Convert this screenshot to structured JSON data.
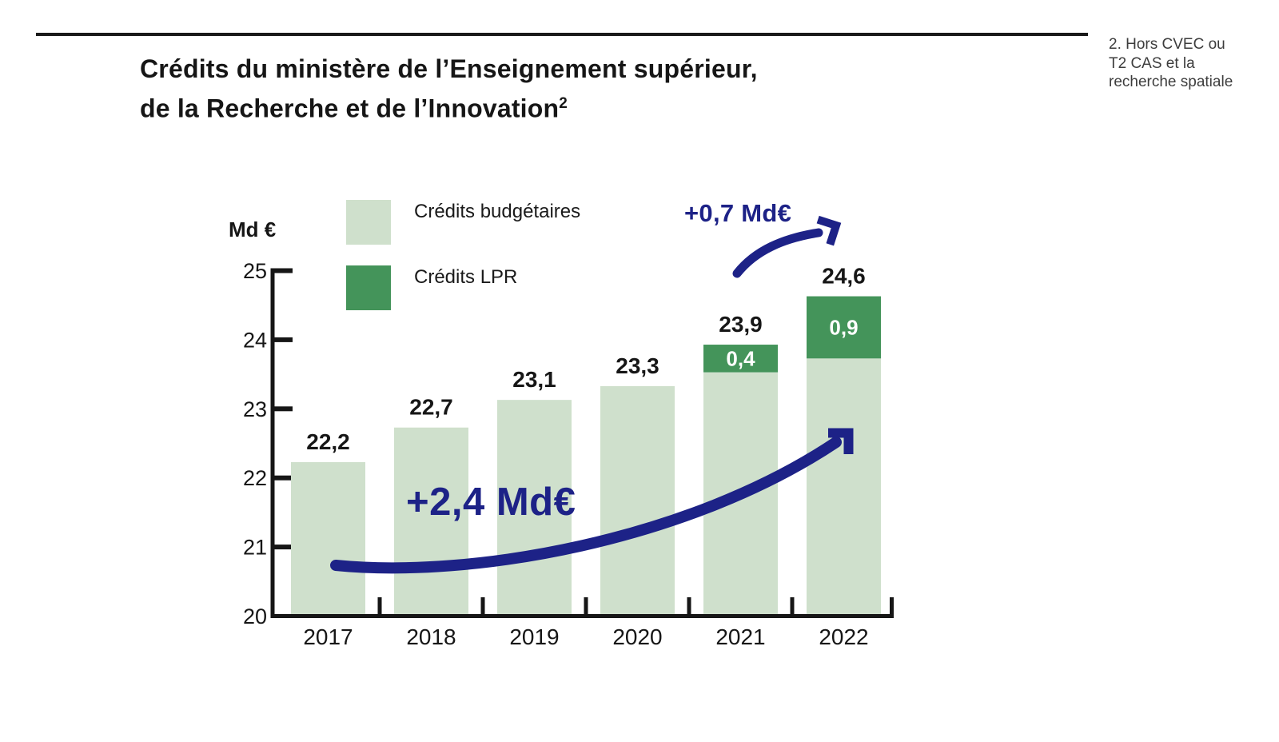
{
  "header": {
    "title_line1": "Crédits du ministère de l’Enseignement supérieur,",
    "title_line2": "de la Recherche et de l’Innovation",
    "title_superscript": "2"
  },
  "footnote": {
    "lines": [
      "2. Hors CVEC ou",
      "T2 CAS et la",
      "recherche spatiale"
    ]
  },
  "legend": {
    "items": [
      {
        "label": "Crédits budgétaires",
        "color": "#cfe0cc"
      },
      {
        "label": "Crédits LPR",
        "color": "#44945a"
      }
    ]
  },
  "annotations": {
    "cumulative_increase_label": "+2,4 Md€",
    "last_year_increase_label": "+0,7 Md€",
    "arrow_color": "#1d2287"
  },
  "chart_data": {
    "type": "bar",
    "stacked": true,
    "title": "Crédits du ministère de l’Enseignement supérieur, de la Recherche et de l’Innovation²",
    "xlabel": "",
    "ylabel": "Md €",
    "categories": [
      "2017",
      "2018",
      "2019",
      "2020",
      "2021",
      "2022"
    ],
    "series": [
      {
        "name": "Crédits budgétaires",
        "color": "#cfe0cc",
        "values": [
          22.2,
          22.7,
          23.1,
          23.3,
          23.5,
          23.7
        ]
      },
      {
        "name": "Crédits LPR",
        "color": "#44945a",
        "values": [
          0,
          0,
          0,
          0,
          0.4,
          0.9
        ]
      }
    ],
    "totals": [
      22.2,
      22.7,
      23.1,
      23.3,
      23.9,
      24.6
    ],
    "total_labels": [
      "22,2",
      "22,7",
      "23,1",
      "23,3",
      "23,9",
      "24,6"
    ],
    "segment_labels": [
      "",
      "",
      "",
      "",
      "0,4",
      "0,9"
    ],
    "y_axis": {
      "label": "Md €",
      "min": 20,
      "max": 25,
      "tick_values": [
        20,
        21,
        22,
        23,
        24,
        25
      ]
    },
    "grid": false,
    "legend_position": "top-left",
    "annotation_texts": [
      "+2,4 Md€",
      "+0,7 Md€"
    ]
  }
}
